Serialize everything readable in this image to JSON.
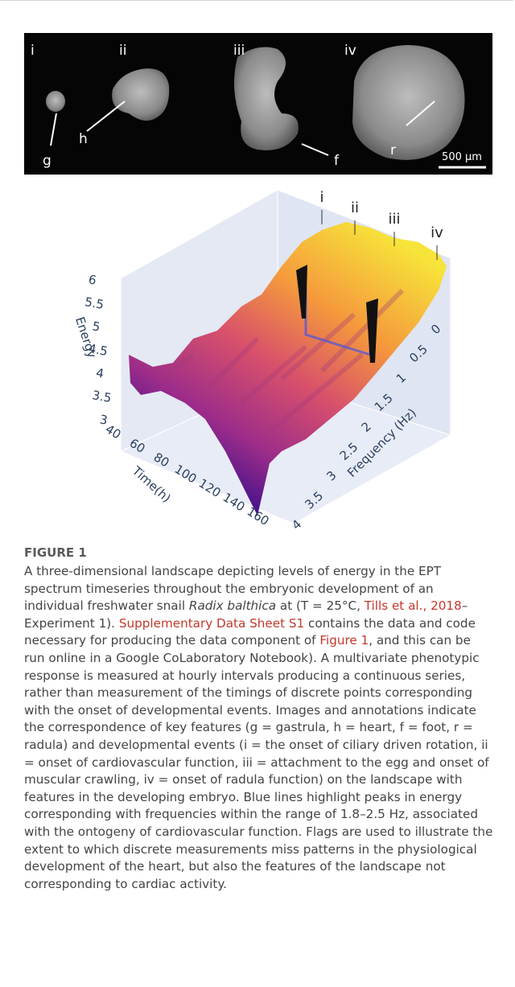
{
  "figure": {
    "panels": {
      "labels": [
        "i",
        "ii",
        "iii",
        "iv"
      ],
      "annotations": [
        "g",
        "h",
        "f",
        "r"
      ],
      "scale_bar": "500 µm"
    },
    "plot": {
      "stage_labels": [
        "i",
        "ii",
        "iii",
        "iv"
      ],
      "z_label": "Energy",
      "z_ticks": [
        "6",
        "5.5",
        "5",
        "4.5",
        "4",
        "3.5",
        "3"
      ],
      "x_label": "Time(h)",
      "x_ticks": [
        "40",
        "60",
        "80",
        "100",
        "120",
        "140",
        "160"
      ],
      "y_label": "Frequency (Hz)",
      "y_ticks": [
        "0",
        "0.5",
        "1",
        "1.5",
        "2",
        "2.5",
        "3",
        "3.5",
        "4"
      ]
    },
    "caption": {
      "label": "FIGURE 1",
      "text": [
        "A three-dimensional landscape depicting levels of energy in the EPT spectrum timeseries throughout the embryonic development of an individual freshwater snail ",
        "Radix balthica",
        " at (T = 25°C, ",
        "Tills et al., 2018",
        "–Experiment 1). ",
        "Supplementary Data Sheet S1",
        " contains the data and code necessary for producing the data component of ",
        "Figure 1",
        ", and this can be run online in a Google CoLaboratory Notebook). A multivariate phenotypic response is measured at hourly intervals producing a continuous series, rather than measurement of the timings of discrete points corresponding with the onset of developmental events. Images and annotations indicate the correspondence of key features (g = gastrula, h = heart, f = foot, r = radula) and developmental events (i = the onset of ciliary driven rotation, ii = onset of cardiovascular function, iii = attachment to the egg and onset of muscular crawling, iv = onset of radula function) on the landscape with features in the developing embryo. Blue lines highlight peaks in energy corresponding with frequencies within the range of 1.8–2.5 Hz, associated with the ontogeny of cardiovascular function. Flags are used to illustrate the extent to which discrete measurements miss patterns in the physiological development of the heart, but also the features of the landscape not corresponding to cardiac activity."
      ]
    }
  }
}
